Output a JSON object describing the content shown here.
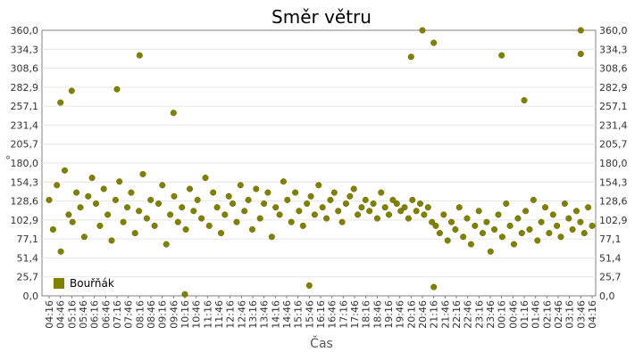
{
  "chart_data": {
    "type": "scatter",
    "title": "Směr větru",
    "xlabel": "Čas",
    "ylabel": "°",
    "ylim": [
      0,
      360
    ],
    "y_ticks": [
      "0,0",
      "25,7",
      "51,4",
      "77,1",
      "102,9",
      "128,6",
      "154,3",
      "180,0",
      "205,7",
      "231,4",
      "257,1",
      "282,9",
      "308,6",
      "334,3",
      "360,0"
    ],
    "x_ticks": [
      "04:16",
      "04:46",
      "05:16",
      "05:46",
      "06:16",
      "06:46",
      "07:16",
      "07:46",
      "08:16",
      "08:46",
      "09:16",
      "09:46",
      "10:16",
      "10:46",
      "11:16",
      "11:46",
      "12:16",
      "12:46",
      "13:16",
      "13:46",
      "14:16",
      "14:46",
      "15:16",
      "15:46",
      "16:16",
      "16:46",
      "17:16",
      "17:46",
      "18:16",
      "18:46",
      "19:16",
      "19:46",
      "20:16",
      "20:46",
      "21:16",
      "21:46",
      "22:16",
      "22:46",
      "23:16",
      "23:46",
      "00:16",
      "00:46",
      "01:16",
      "01:46",
      "02:16",
      "02:46",
      "03:16",
      "03:46",
      "04:16"
    ],
    "grid": "horizontal",
    "legend_position": "bottom-left",
    "series": [
      {
        "name": "Bouřňák",
        "color": "#808000",
        "x_start": "04:16",
        "x_end": "04:16",
        "values": [
          130,
          90,
          150,
          60,
          170,
          110,
          100,
          140,
          120,
          80,
          135,
          160,
          125,
          95,
          145,
          110,
          75,
          130,
          155,
          100,
          120,
          140,
          85,
          115,
          165,
          105,
          130,
          95,
          125,
          150,
          70,
          110,
          135,
          100,
          120,
          90,
          145,
          115,
          130,
          105,
          160,
          95,
          140,
          120,
          85,
          110,
          135,
          125,
          100,
          150,
          115,
          130,
          90,
          145,
          105,
          125,
          140,
          80,
          120,
          110,
          155,
          130,
          100,
          140,
          115,
          95,
          125,
          135,
          110,
          150,
          120,
          105,
          130,
          140,
          115,
          100,
          125,
          135,
          145,
          110,
          120,
          130,
          115,
          125,
          105,
          140,
          120,
          110,
          130,
          125,
          115,
          120,
          105,
          130,
          115,
          125,
          110,
          120,
          100,
          95,
          85,
          110,
          75,
          100,
          90,
          120,
          80,
          105,
          70,
          95,
          115,
          85,
          100,
          60,
          90,
          110,
          80,
          125,
          95,
          70,
          105,
          85,
          115,
          90,
          130,
          75,
          100,
          120,
          85,
          110,
          95,
          80,
          125,
          105,
          90,
          115,
          100,
          85,
          120,
          95
        ],
        "outliers": [
          {
            "x": "04:46",
            "y": 262
          },
          {
            "x": "05:16",
            "y": 278
          },
          {
            "x": "07:16",
            "y": 280
          },
          {
            "x": "08:16",
            "y": 326
          },
          {
            "x": "09:46",
            "y": 248
          },
          {
            "x": "10:16",
            "y": 2
          },
          {
            "x": "15:46",
            "y": 14
          },
          {
            "x": "20:46",
            "y": 360
          },
          {
            "x": "20:16",
            "y": 324
          },
          {
            "x": "21:16",
            "y": 343
          },
          {
            "x": "21:16",
            "y": 12
          },
          {
            "x": "00:16",
            "y": 326
          },
          {
            "x": "01:16",
            "y": 265
          },
          {
            "x": "03:46",
            "y": 360
          },
          {
            "x": "03:46",
            "y": 328
          }
        ]
      }
    ]
  }
}
